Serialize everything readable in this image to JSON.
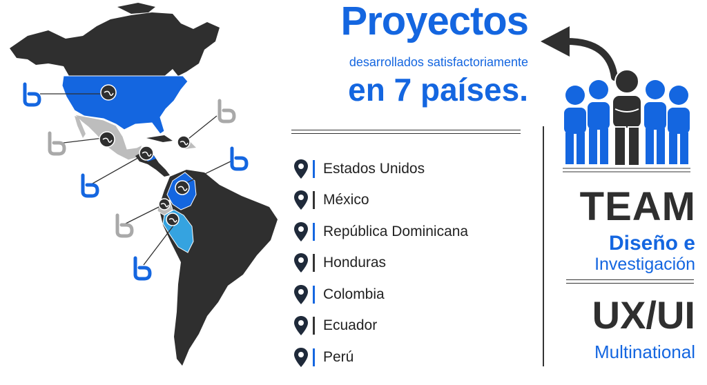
{
  "headline": {
    "title": "Proyectos",
    "subtitle": "desarrollados satisfactoriamente",
    "count_line": "en 7  países."
  },
  "countries": [
    {
      "name": "Estados Unidos",
      "bar_color": "#1466e0"
    },
    {
      "name": "México",
      "bar_color": "#333333"
    },
    {
      "name": "República Dominicana",
      "bar_color": "#1466e0"
    },
    {
      "name": "Honduras",
      "bar_color": "#333333"
    },
    {
      "name": "Colombia",
      "bar_color": "#1466e0"
    },
    {
      "name": "Ecuador",
      "bar_color": "#333333"
    },
    {
      "name": "Perú",
      "bar_color": "#1466e0"
    }
  ],
  "team": {
    "line1": "TEAM",
    "line2": "Diseño e",
    "line3": "Investigación",
    "line4": "UX/UI",
    "line5": "Multinational"
  },
  "icons": {
    "marker": "map-pin-icon",
    "logo": "b-logo-icon",
    "team": "team-people-icon",
    "arrow": "curved-arrow-icon"
  },
  "colors": {
    "brand_blue": "#1466e0",
    "light_blue": "#35a3e0",
    "dark": "#2f2f2f",
    "gray": "#a9a9a9",
    "light_gray": "#cfcfcf"
  }
}
